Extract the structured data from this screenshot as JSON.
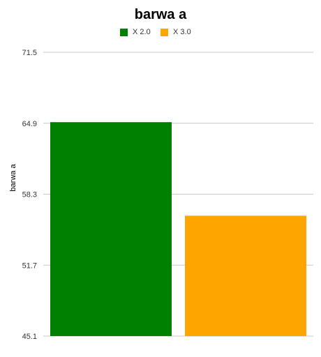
{
  "chart_data": {
    "type": "bar",
    "title": "barwa a",
    "xlabel": "",
    "ylabel": "barwa a",
    "ylim": [
      45.1,
      71.5
    ],
    "yticks": [
      "45.1",
      "51.7",
      "58.3",
      "64.9",
      "71.5"
    ],
    "grid": true,
    "legend_position": "top",
    "series": [
      {
        "name": "X 2.0",
        "value": 65.0,
        "color": "#008000"
      },
      {
        "name": "X 3.0",
        "value": 56.3,
        "color": "#FFA500"
      }
    ]
  }
}
